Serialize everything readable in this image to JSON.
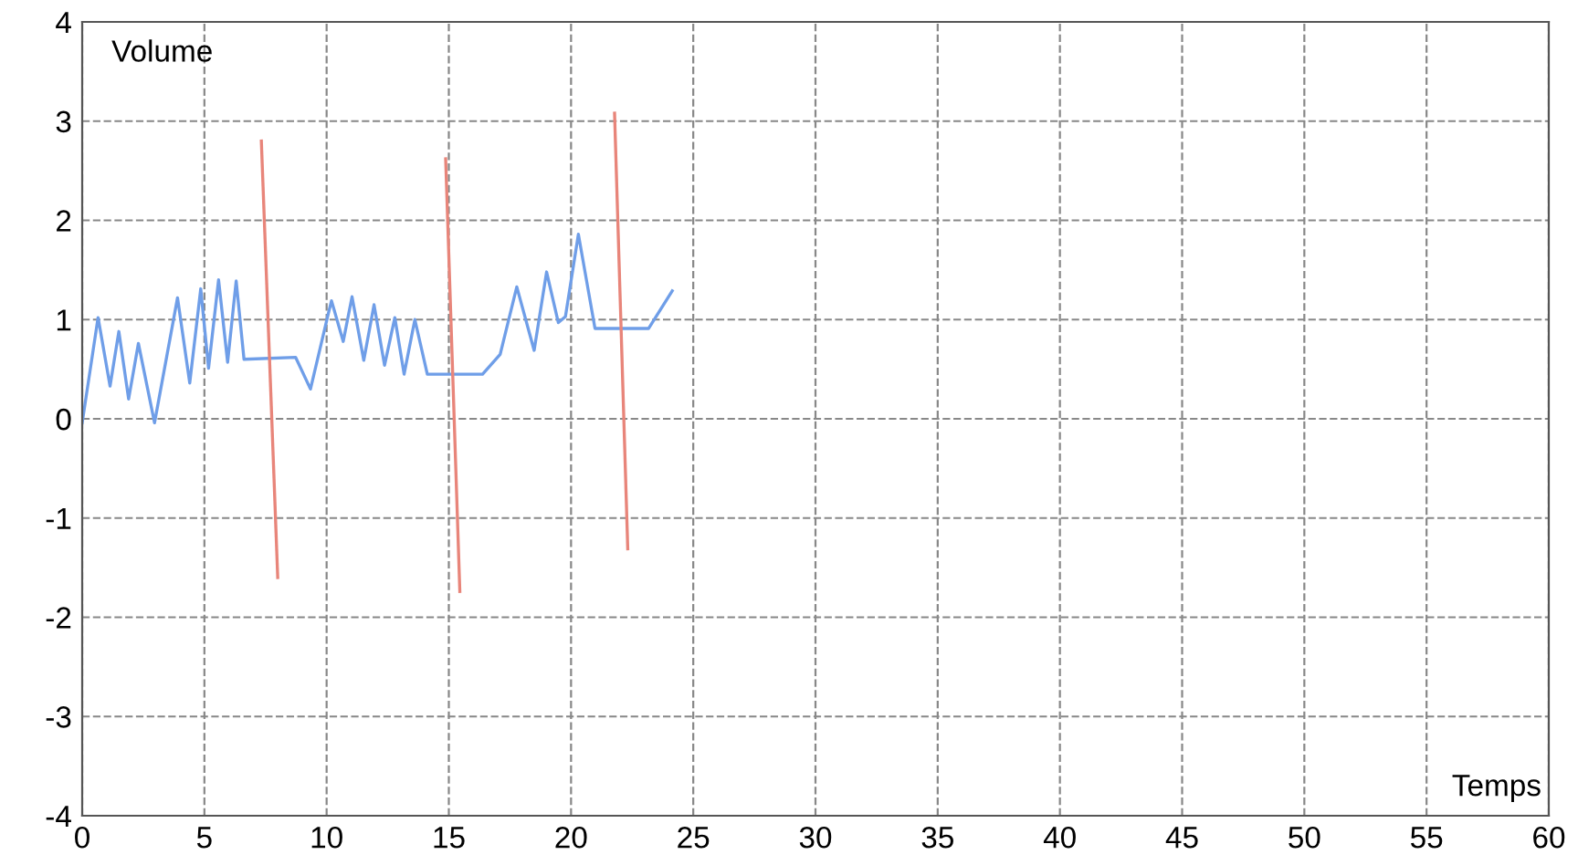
{
  "chart_data": {
    "type": "line",
    "xlabel": "Temps",
    "ylabel": "Volume",
    "xlim": [
      0,
      60
    ],
    "ylim": [
      -4,
      4
    ],
    "xticks": [
      0,
      5,
      10,
      15,
      20,
      25,
      30,
      35,
      40,
      45,
      50,
      55,
      60
    ],
    "yticks": [
      -4,
      -3,
      -2,
      -1,
      0,
      1,
      2,
      3,
      4
    ],
    "grid": true,
    "line_style": "solid",
    "marker": "none",
    "series": [
      {
        "color": "#6f9ee8",
        "x": [
          0,
          0.65,
          1.14,
          1.5,
          1.9,
          2.3,
          2.96,
          3.9,
          4.4,
          4.85,
          5.17,
          5.58,
          5.95,
          6.3,
          6.62,
          8.73,
          9.34,
          10.07,
          10.2,
          10.68,
          11.04,
          11.52,
          11.94,
          12.37,
          12.79,
          13.17,
          13.61,
          14.12,
          16.38,
          17.1,
          17.78,
          18.49,
          19.0,
          19.48,
          19.77,
          20.3,
          20.98,
          23.17,
          24.14
        ],
        "values": [
          -0.04,
          1.02,
          0.33,
          0.88,
          0.2,
          0.76,
          -0.04,
          1.22,
          0.36,
          1.31,
          0.51,
          1.4,
          0.57,
          1.39,
          0.6,
          0.62,
          0.3,
          1.06,
          1.19,
          0.78,
          1.23,
          0.59,
          1.15,
          0.54,
          1.02,
          0.45,
          1.0,
          0.45,
          0.45,
          0.65,
          1.33,
          0.69,
          1.48,
          0.97,
          1.03,
          1.86,
          0.91,
          0.91,
          1.29
        ]
      },
      {
        "color": "#e8857a",
        "x": [
          7.33,
          8.0
        ],
        "values": [
          2.8,
          -1.6
        ]
      },
      {
        "color": "#e8857a",
        "x": [
          14.87,
          15.45
        ],
        "values": [
          2.62,
          -1.74
        ]
      },
      {
        "color": "#e8857a",
        "x": [
          21.78,
          22.32
        ],
        "values": [
          3.08,
          -1.31
        ]
      }
    ]
  }
}
